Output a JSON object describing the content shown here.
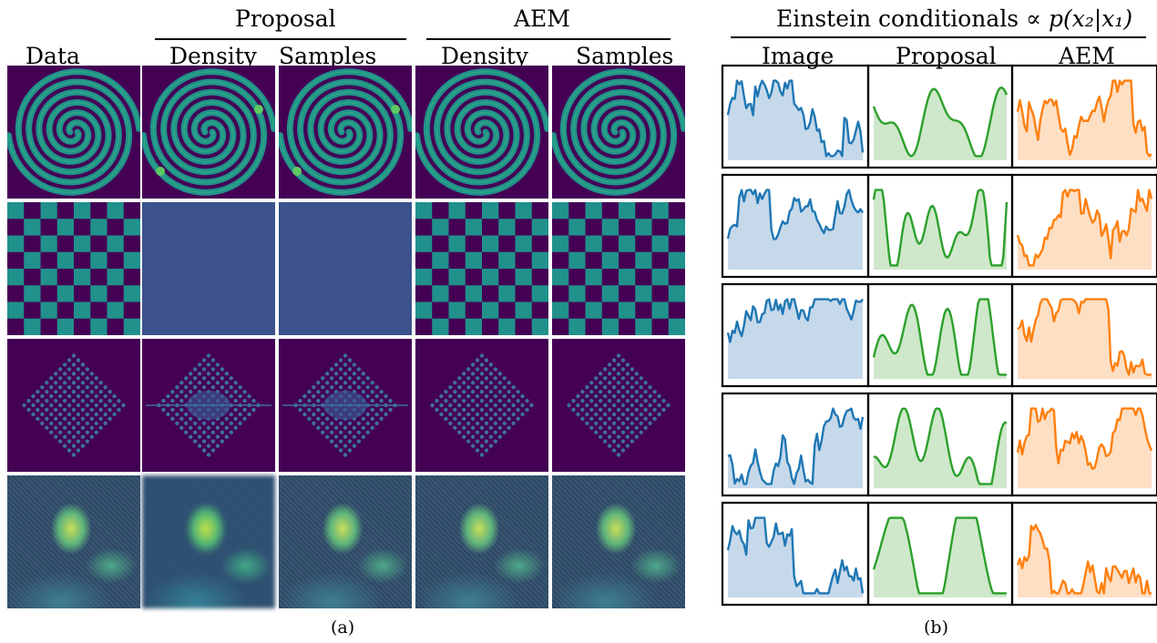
{
  "panel_a": {
    "group_headers": [
      "Proposal",
      "AEM"
    ],
    "column_headers": [
      "Data",
      "Density",
      "Samples",
      "Density",
      "Samples"
    ],
    "rows": [
      "spiral",
      "checkerboard",
      "diamond",
      "einstein"
    ],
    "caption": "(a)"
  },
  "panel_b": {
    "title_prefix": "Einstein conditionals",
    "title_math": "∝ p(x₂|x₁)",
    "column_headers": [
      "Image",
      "Proposal",
      "AEM"
    ],
    "caption": "(b)",
    "colors": {
      "image": "#1f77b4",
      "proposal": "#2ca02c",
      "aem": "#ff7f0e",
      "image_fill": "#c6d9ea",
      "proposal_fill": "#cfe8cb",
      "aem_fill": "#fddfc4"
    }
  },
  "colors": {
    "viridis_dark": "#440154",
    "viridis_mid": "#3b528b",
    "viridis_teal": "#21918c",
    "viridis_green": "#5ec962",
    "viridis_yellow": "#fde725"
  }
}
